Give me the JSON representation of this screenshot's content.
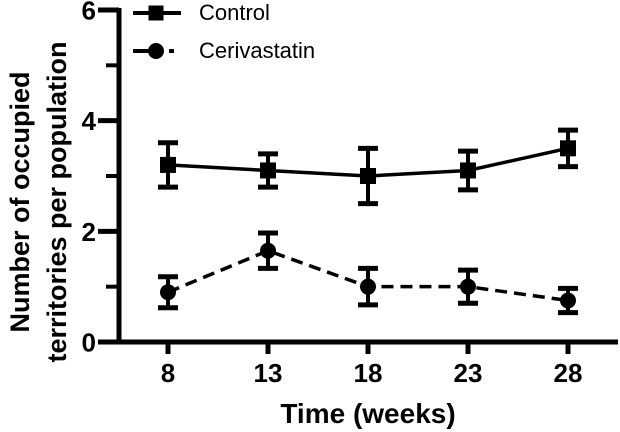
{
  "figure": {
    "background": "#ffffff",
    "ink": "#000000"
  },
  "chart_data": {
    "type": "line",
    "title": "",
    "xlabel": "Time (weeks)",
    "ylabel": "Number of occupied territories per population",
    "ylabel_lines": [
      "Number of occupied",
      "territories per population"
    ],
    "x": [
      8,
      13,
      18,
      23,
      28
    ],
    "x_tick_labels": [
      "8",
      "13",
      "18",
      "23",
      "28"
    ],
    "ylim": [
      0,
      6
    ],
    "y_major_ticks": [
      0,
      2,
      4,
      6
    ],
    "y_minor_ticks": [
      1,
      3,
      5
    ],
    "grid": false,
    "legend_position": "top-left",
    "error_bars": true,
    "series": [
      {
        "name": "Control",
        "marker": "square",
        "line_style": "solid",
        "values": [
          3.2,
          3.1,
          3.0,
          3.1,
          3.5
        ],
        "errors": [
          0.4,
          0.3,
          0.5,
          0.35,
          0.33
        ]
      },
      {
        "name": "Cerivastatin",
        "marker": "circle",
        "line_style": "dashed",
        "values": [
          0.9,
          1.65,
          1.0,
          1.0,
          0.75
        ],
        "errors": [
          0.28,
          0.32,
          0.33,
          0.3,
          0.22
        ]
      }
    ]
  }
}
